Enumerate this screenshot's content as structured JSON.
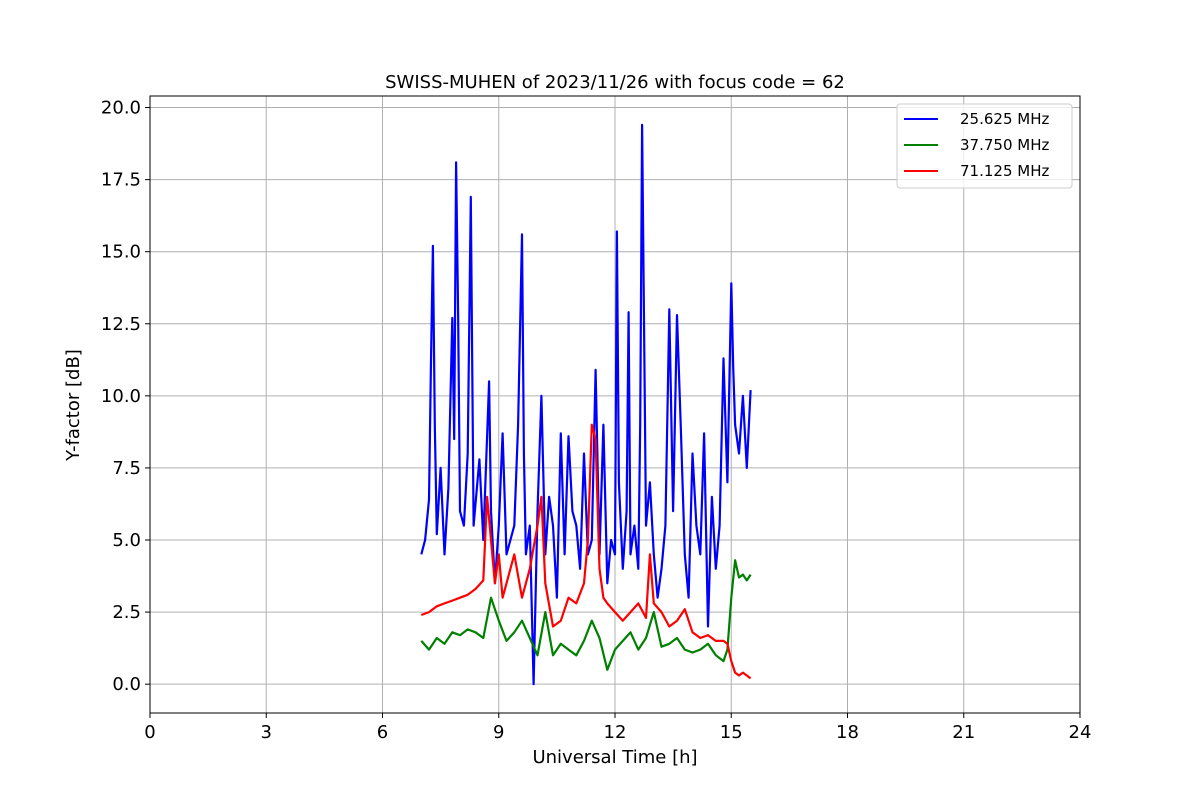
{
  "chart_data": {
    "type": "line",
    "title": "SWISS-MUHEN of 2023/11/26 with focus code = 62",
    "xlabel": "Universal Time [h]",
    "ylabel": "Y-factor [dB]",
    "xlim": [
      0,
      24
    ],
    "ylim": [
      -1,
      20.4
    ],
    "xticks": [
      0,
      3,
      6,
      9,
      12,
      15,
      18,
      21,
      24
    ],
    "xtick_labels": [
      "0",
      "3",
      "6",
      "9",
      "12",
      "15",
      "18",
      "21",
      "24"
    ],
    "yticks": [
      0,
      2.5,
      5,
      7.5,
      10,
      12.5,
      15,
      17.5,
      20
    ],
    "ytick_labels": [
      "0.0",
      "2.5",
      "5.0",
      "7.5",
      "10.0",
      "12.5",
      "15.0",
      "17.5",
      "20.0"
    ],
    "grid": true,
    "legend_position": "top-right",
    "series": [
      {
        "name": "25.625 MHz",
        "color": "#0000ff",
        "x": [
          7.0,
          7.1,
          7.2,
          7.25,
          7.3,
          7.35,
          7.4,
          7.5,
          7.6,
          7.7,
          7.8,
          7.85,
          7.9,
          7.95,
          8.0,
          8.1,
          8.2,
          8.28,
          8.35,
          8.5,
          8.6,
          8.7,
          8.75,
          8.8,
          8.9,
          9.0,
          9.1,
          9.2,
          9.3,
          9.4,
          9.5,
          9.6,
          9.65,
          9.7,
          9.8,
          9.9,
          10.0,
          10.1,
          10.2,
          10.3,
          10.4,
          10.5,
          10.6,
          10.7,
          10.8,
          10.9,
          11.0,
          11.1,
          11.2,
          11.3,
          11.4,
          11.5,
          11.6,
          11.7,
          11.8,
          11.9,
          12.0,
          12.05,
          12.1,
          12.2,
          12.3,
          12.35,
          12.4,
          12.5,
          12.6,
          12.65,
          12.7,
          12.8,
          12.9,
          13.0,
          13.1,
          13.2,
          13.3,
          13.4,
          13.5,
          13.6,
          13.7,
          13.8,
          13.9,
          14.0,
          14.1,
          14.2,
          14.3,
          14.4,
          14.5,
          14.6,
          14.7,
          14.8,
          14.9,
          15.0,
          15.05,
          15.1,
          15.2,
          15.3,
          15.4,
          15.5
        ],
        "y": [
          4.5,
          5.0,
          6.4,
          11.0,
          15.2,
          9.0,
          5.2,
          7.5,
          4.5,
          6.8,
          12.7,
          8.5,
          18.1,
          12.9,
          6.0,
          5.5,
          8.0,
          16.9,
          5.5,
          7.8,
          5.0,
          8.6,
          10.5,
          6.0,
          3.5,
          5.5,
          8.7,
          4.5,
          5.0,
          5.5,
          9.0,
          15.6,
          8.0,
          4.5,
          5.5,
          0.0,
          6.0,
          10.0,
          4.5,
          6.5,
          5.5,
          3.0,
          8.7,
          4.5,
          8.6,
          6.0,
          5.5,
          4.0,
          8.0,
          4.5,
          5.0,
          10.9,
          4.5,
          9.0,
          3.5,
          5.0,
          4.5,
          15.7,
          7.0,
          4.0,
          6.0,
          12.9,
          4.5,
          5.5,
          4.0,
          9.0,
          19.4,
          5.5,
          7.0,
          4.5,
          3.0,
          4.0,
          5.5,
          13.0,
          6.0,
          12.8,
          8.8,
          4.5,
          3.0,
          8.0,
          5.5,
          4.5,
          8.7,
          2.0,
          6.5,
          4.0,
          5.5,
          11.3,
          7.0,
          13.9,
          11.0,
          9.0,
          8.0,
          10.0,
          7.5,
          10.2
        ]
      },
      {
        "name": "37.750 MHz",
        "color": "#008000",
        "x": [
          7.0,
          7.2,
          7.4,
          7.6,
          7.8,
          8.0,
          8.2,
          8.4,
          8.6,
          8.8,
          9.0,
          9.2,
          9.4,
          9.6,
          9.8,
          10.0,
          10.2,
          10.4,
          10.6,
          10.8,
          11.0,
          11.2,
          11.4,
          11.6,
          11.8,
          12.0,
          12.2,
          12.4,
          12.6,
          12.8,
          13.0,
          13.2,
          13.4,
          13.6,
          13.8,
          14.0,
          14.2,
          14.4,
          14.6,
          14.8,
          14.9,
          15.0,
          15.1,
          15.2,
          15.3,
          15.4,
          15.5
        ],
        "y": [
          1.5,
          1.2,
          1.6,
          1.4,
          1.8,
          1.7,
          1.9,
          1.8,
          1.6,
          3.0,
          2.2,
          1.5,
          1.8,
          2.2,
          1.6,
          1.0,
          2.5,
          1.0,
          1.4,
          1.2,
          1.0,
          1.5,
          2.2,
          1.6,
          0.5,
          1.2,
          1.5,
          1.8,
          1.2,
          1.6,
          2.5,
          1.3,
          1.4,
          1.6,
          1.2,
          1.1,
          1.2,
          1.4,
          1.0,
          0.8,
          1.2,
          3.0,
          4.3,
          3.7,
          3.8,
          3.6,
          3.8
        ]
      },
      {
        "name": "71.125 MHz",
        "color": "#ff0000",
        "x": [
          7.0,
          7.2,
          7.4,
          7.6,
          7.8,
          8.0,
          8.2,
          8.4,
          8.6,
          8.7,
          8.8,
          8.9,
          9.0,
          9.1,
          9.2,
          9.4,
          9.6,
          9.8,
          10.0,
          10.1,
          10.2,
          10.4,
          10.6,
          10.8,
          11.0,
          11.2,
          11.3,
          11.4,
          11.5,
          11.6,
          11.7,
          11.8,
          12.0,
          12.2,
          12.4,
          12.6,
          12.8,
          12.9,
          13.0,
          13.2,
          13.4,
          13.6,
          13.8,
          14.0,
          14.2,
          14.4,
          14.6,
          14.8,
          14.9,
          15.0,
          15.1,
          15.2,
          15.3,
          15.4,
          15.5
        ],
        "y": [
          2.4,
          2.5,
          2.7,
          2.8,
          2.9,
          3.0,
          3.1,
          3.3,
          3.6,
          6.5,
          5.0,
          3.5,
          4.5,
          3.0,
          3.5,
          4.5,
          3.0,
          4.0,
          5.5,
          6.5,
          3.5,
          2.0,
          2.2,
          3.0,
          2.8,
          3.5,
          5.0,
          9.0,
          8.5,
          4.0,
          3.0,
          2.8,
          2.5,
          2.2,
          2.5,
          2.8,
          2.3,
          4.5,
          2.8,
          2.5,
          2.0,
          2.2,
          2.6,
          1.8,
          1.6,
          1.7,
          1.5,
          1.5,
          1.4,
          0.8,
          0.4,
          0.3,
          0.4,
          0.3,
          0.2
        ]
      }
    ]
  }
}
